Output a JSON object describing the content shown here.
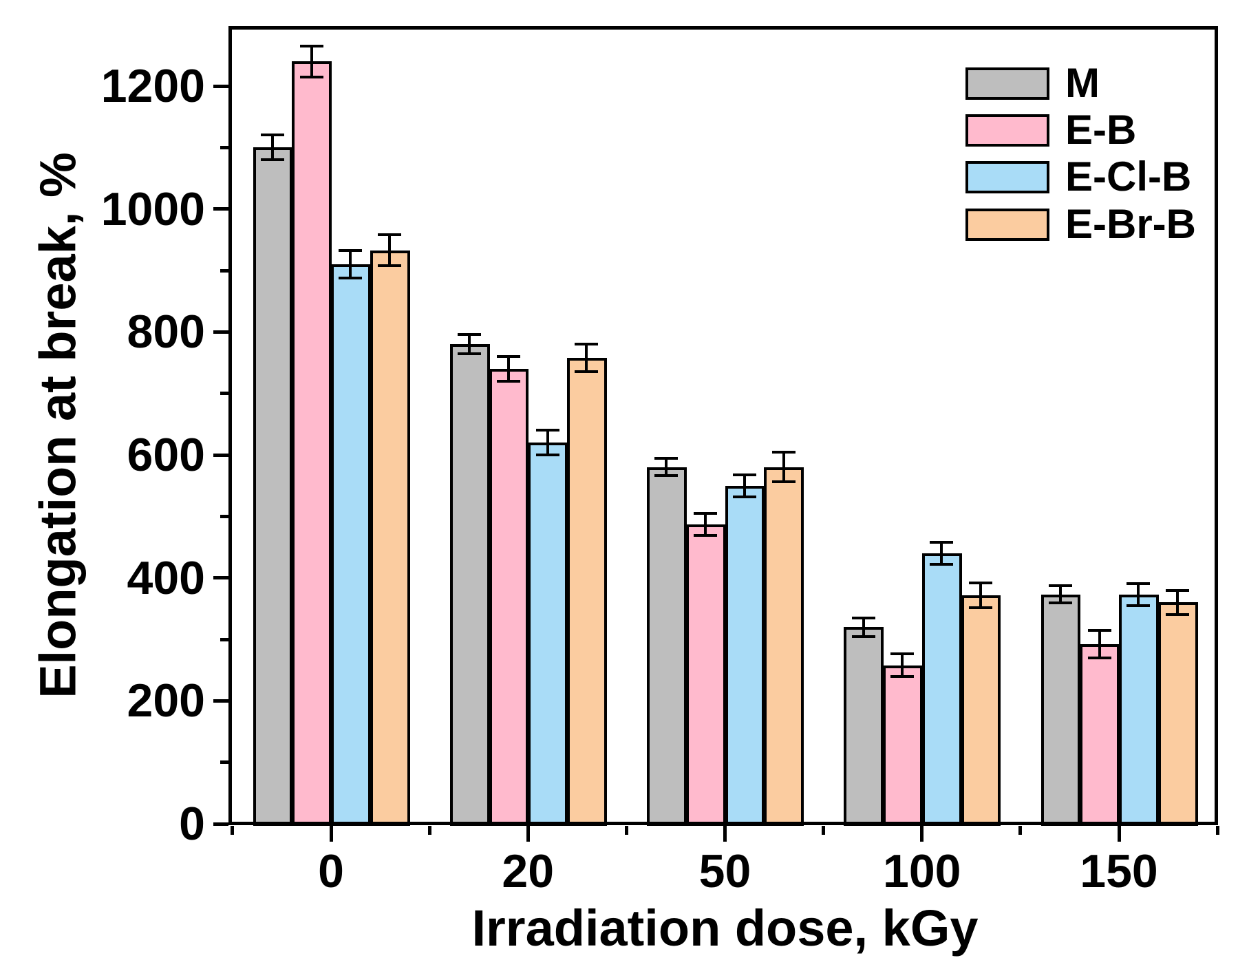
{
  "chart_data": {
    "type": "bar",
    "title": "",
    "xlabel": "Irradiation dose, kGy",
    "ylabel": "Elongation at break, %",
    "categories": [
      "0",
      "20",
      "50",
      "100",
      "150"
    ],
    "series": [
      {
        "name": "M",
        "color": "#BEBEBE",
        "values": [
          1100,
          780,
          580,
          320,
          373
        ],
        "errors": [
          20,
          16,
          14,
          15,
          14
        ]
      },
      {
        "name": "E-B",
        "color": "#FFBACD",
        "values": [
          1240,
          740,
          487,
          258,
          292
        ],
        "errors": [
          25,
          20,
          18,
          18,
          22
        ]
      },
      {
        "name": "E-Cl-B",
        "color": "#A9DCF7",
        "values": [
          910,
          620,
          550,
          440,
          373
        ],
        "errors": [
          22,
          20,
          18,
          18,
          18
        ]
      },
      {
        "name": "E-Br-B",
        "color": "#FBCCA0",
        "values": [
          933,
          758,
          580,
          372,
          360
        ],
        "errors": [
          25,
          22,
          24,
          20,
          20
        ]
      }
    ],
    "ylim": [
      0,
      1300
    ],
    "y_major_ticks": [
      0,
      200,
      400,
      600,
      800,
      1000,
      1200
    ],
    "y_minor_ticks": [
      100,
      300,
      500,
      700,
      900,
      1100
    ],
    "grid": false,
    "legend_position": "top-right",
    "error_bars": true,
    "bar_outline_color": "#000000",
    "axis_color": "#000000"
  }
}
